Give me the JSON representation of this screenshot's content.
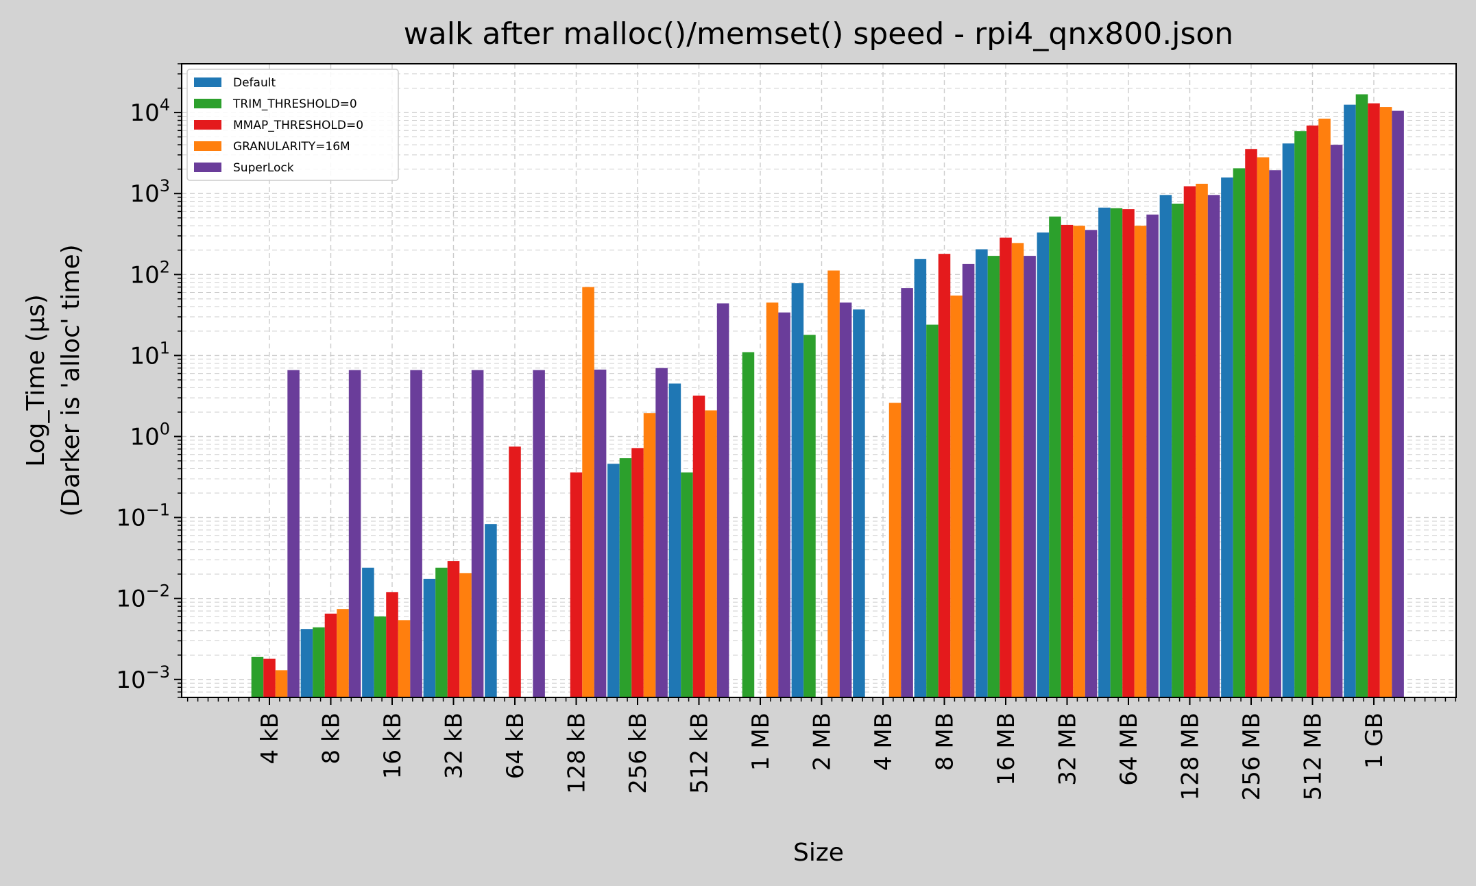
{
  "chart_data": {
    "type": "bar",
    "title": "walk after malloc()/memset() speed - rpi4_qnx800.json",
    "xlabel": "Size",
    "ylabel_lines": [
      "Log_Time (µs)",
      "(Darker is 'alloc' time)"
    ],
    "yscale": "log",
    "ylim": [
      0.0006,
      40000
    ],
    "yticks": [
      {
        "value": 0.001,
        "base": "10",
        "exp": "−3"
      },
      {
        "value": 0.01,
        "base": "10",
        "exp": "−2"
      },
      {
        "value": 0.1,
        "base": "10",
        "exp": "−1"
      },
      {
        "value": 1,
        "base": "10",
        "exp": "0"
      },
      {
        "value": 10,
        "base": "10",
        "exp": "1"
      },
      {
        "value": 100,
        "base": "10",
        "exp": "2"
      },
      {
        "value": 1000,
        "base": "10",
        "exp": "3"
      },
      {
        "value": 10000,
        "base": "10",
        "exp": "4"
      }
    ],
    "grid": true,
    "legend_position": "top-left",
    "categories": [
      "4 kB",
      "8 kB",
      "16 kB",
      "32 kB",
      "64 kB",
      "128 kB",
      "256 kB",
      "512 kB",
      "1 MB",
      "2 MB",
      "4 MB",
      "8 MB",
      "16 MB",
      "32 MB",
      "64 MB",
      "128 MB",
      "256 MB",
      "512 MB",
      "1 GB"
    ],
    "series": [
      {
        "name": "Default",
        "color": "#1f77b4",
        "values": [
          null,
          0.0042,
          0.024,
          0.0175,
          0.083,
          null,
          0.46,
          4.5,
          null,
          78,
          37,
          155,
          205,
          330,
          670,
          960,
          1580,
          4150,
          12500
        ]
      },
      {
        "name": "TRIM_THRESHOLD=0",
        "color": "#2ca02c",
        "values": [
          0.0019,
          0.0044,
          0.006,
          0.024,
          null,
          null,
          0.54,
          0.36,
          11,
          18,
          null,
          24,
          170,
          520,
          660,
          750,
          2050,
          5900,
          16800
        ]
      },
      {
        "name": "MMAP_THRESHOLD=0",
        "color": "#e41a1c",
        "values": [
          0.0018,
          0.0065,
          0.012,
          0.029,
          0.75,
          0.36,
          0.72,
          3.2,
          null,
          null,
          null,
          180,
          285,
          410,
          640,
          1230,
          3550,
          6900,
          13000
        ]
      },
      {
        "name": "GRANULARITY=16M",
        "color": "#ff7f0e",
        "values": [
          0.0013,
          0.0074,
          0.0054,
          0.0205,
          null,
          70,
          1.95,
          2.1,
          45,
          112,
          2.6,
          55,
          245,
          400,
          400,
          1320,
          2800,
          8400,
          11700
        ]
      },
      {
        "name": "SuperLock",
        "color": "#6a3d9a",
        "values": [
          6.6,
          6.6,
          6.6,
          6.6,
          6.6,
          6.7,
          7.0,
          44,
          34,
          45,
          68,
          135,
          170,
          355,
          550,
          960,
          1940,
          4000,
          10500
        ]
      }
    ]
  }
}
